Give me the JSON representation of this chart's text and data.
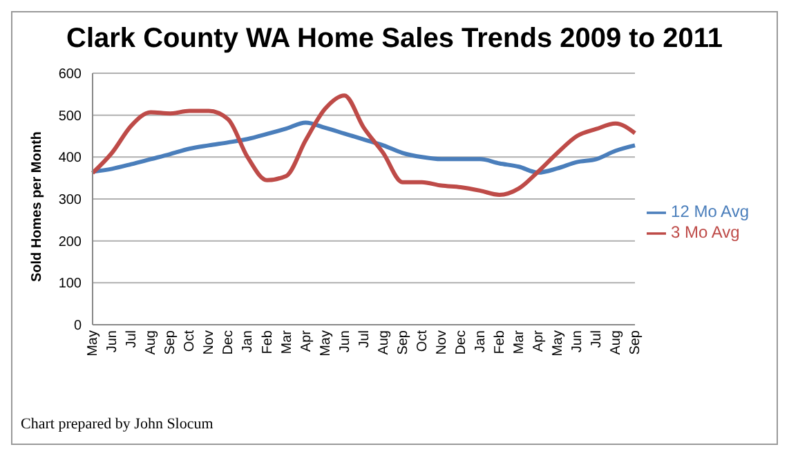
{
  "chart_data": {
    "type": "line",
    "title": "Clark County WA Home Sales Trends 2009 to 2011",
    "ylabel": "Sold Homes per Month",
    "categories": [
      "May",
      "Jun",
      "Jul",
      "Aug",
      "Sep",
      "Oct",
      "Nov",
      "Dec",
      "Jan",
      "Feb",
      "Mar",
      "Apr",
      "May",
      "Jun",
      "Jul",
      "Aug",
      "Sep",
      "Oct",
      "Nov",
      "Dec",
      "Jan",
      "Feb",
      "Mar",
      "Apr",
      "May",
      "Jun",
      "Jul",
      "Aug",
      "Sep"
    ],
    "series": [
      {
        "name": "12 Mo Avg",
        "color": "#4a7ebb",
        "values": [
          365,
          372,
          383,
          395,
          407,
          420,
          428,
          435,
          443,
          455,
          468,
          482,
          470,
          456,
          442,
          428,
          410,
          400,
          395,
          395,
          395,
          385,
          377,
          363,
          373,
          388,
          395,
          415,
          428
        ]
      },
      {
        "name": "3 Mo Avg",
        "color": "#be4b48",
        "values": [
          362,
          410,
          475,
          507,
          504,
          510,
          510,
          490,
          400,
          345,
          355,
          440,
          515,
          547,
          470,
          410,
          340,
          340,
          332,
          328,
          320,
          310,
          325,
          365,
          410,
          450,
          467,
          480,
          457
        ]
      }
    ],
    "ylim": [
      0,
      600
    ],
    "yticks": [
      0,
      100,
      200,
      300,
      400,
      500,
      600
    ],
    "grid": "y",
    "legend": "right",
    "marker": "none",
    "line_style": "solid",
    "annotations": [
      "Chart prepared by John Slocum"
    ]
  }
}
